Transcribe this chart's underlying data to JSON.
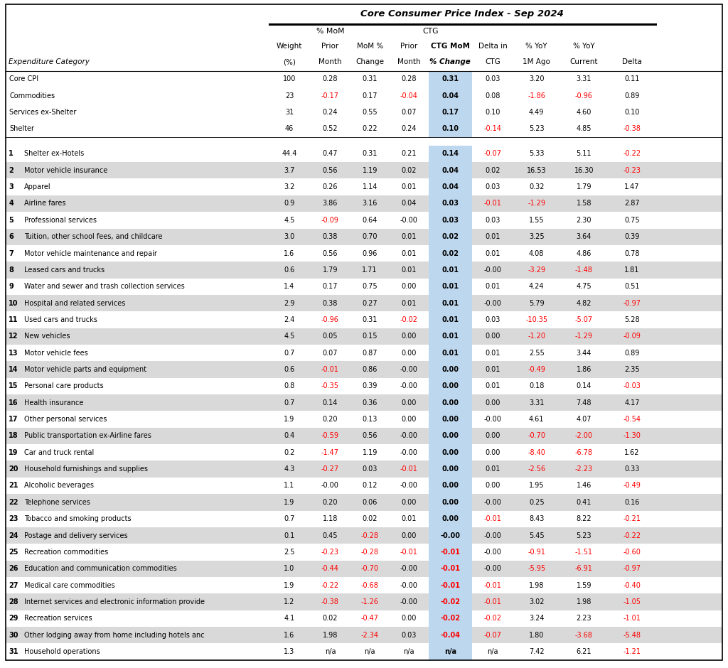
{
  "title": "Core Consumer Price Index - Sep 2024",
  "summary_rows": [
    [
      "Core CPI",
      "100",
      "0.28",
      "0.31",
      "0.28",
      "0.31",
      "0.03",
      "3.20",
      "3.31",
      "0.11"
    ],
    [
      "Commodities",
      "23",
      "-0.17",
      "0.17",
      "-0.04",
      "0.04",
      "0.08",
      "-1.86",
      "-0.96",
      "0.89"
    ],
    [
      "Services ex-Shelter",
      "31",
      "0.24",
      "0.55",
      "0.07",
      "0.17",
      "0.10",
      "4.49",
      "4.60",
      "0.10"
    ],
    [
      "Shelter",
      "46",
      "0.52",
      "0.22",
      "0.24",
      "0.10",
      "-0.14",
      "5.23",
      "4.85",
      "-0.38"
    ]
  ],
  "detail_rows": [
    [
      "1",
      "Shelter ex-Hotels",
      "44.4",
      "0.47",
      "0.31",
      "0.21",
      "0.14",
      "-0.07",
      "5.33",
      "5.11",
      "-0.22"
    ],
    [
      "2",
      "Motor vehicle insurance",
      "3.7",
      "0.56",
      "1.19",
      "0.02",
      "0.04",
      "0.02",
      "16.53",
      "16.30",
      "-0.23"
    ],
    [
      "3",
      "Apparel",
      "3.2",
      "0.26",
      "1.14",
      "0.01",
      "0.04",
      "0.03",
      "0.32",
      "1.79",
      "1.47"
    ],
    [
      "4",
      "Airline fares",
      "0.9",
      "3.86",
      "3.16",
      "0.04",
      "0.03",
      "-0.01",
      "-1.29",
      "1.58",
      "2.87"
    ],
    [
      "5",
      "Professional services",
      "4.5",
      "-0.09",
      "0.64",
      "-0.00",
      "0.03",
      "0.03",
      "1.55",
      "2.30",
      "0.75"
    ],
    [
      "6",
      "Tuition, other school fees, and childcare",
      "3.0",
      "0.38",
      "0.70",
      "0.01",
      "0.02",
      "0.01",
      "3.25",
      "3.64",
      "0.39"
    ],
    [
      "7",
      "Motor vehicle maintenance and repair",
      "1.6",
      "0.56",
      "0.96",
      "0.01",
      "0.02",
      "0.01",
      "4.08",
      "4.86",
      "0.78"
    ],
    [
      "8",
      "Leased cars and trucks",
      "0.6",
      "1.79",
      "1.71",
      "0.01",
      "0.01",
      "-0.00",
      "-3.29",
      "-1.48",
      "1.81"
    ],
    [
      "9",
      "Water and sewer and trash collection services",
      "1.4",
      "0.17",
      "0.75",
      "0.00",
      "0.01",
      "0.01",
      "4.24",
      "4.75",
      "0.51"
    ],
    [
      "10",
      "Hospital and related services",
      "2.9",
      "0.38",
      "0.27",
      "0.01",
      "0.01",
      "-0.00",
      "5.79",
      "4.82",
      "-0.97"
    ],
    [
      "11",
      "Used cars and trucks",
      "2.4",
      "-0.96",
      "0.31",
      "-0.02",
      "0.01",
      "0.03",
      "-10.35",
      "-5.07",
      "5.28"
    ],
    [
      "12",
      "New vehicles",
      "4.5",
      "0.05",
      "0.15",
      "0.00",
      "0.01",
      "0.00",
      "-1.20",
      "-1.29",
      "-0.09"
    ],
    [
      "13",
      "Motor vehicle fees",
      "0.7",
      "0.07",
      "0.87",
      "0.00",
      "0.01",
      "0.01",
      "2.55",
      "3.44",
      "0.89"
    ],
    [
      "14",
      "Motor vehicle parts and equipment",
      "0.6",
      "-0.01",
      "0.86",
      "-0.00",
      "0.00",
      "0.01",
      "-0.49",
      "1.86",
      "2.35"
    ],
    [
      "15",
      "Personal care products",
      "0.8",
      "-0.35",
      "0.39",
      "-0.00",
      "0.00",
      "0.01",
      "0.18",
      "0.14",
      "-0.03"
    ],
    [
      "16",
      "Health insurance",
      "0.7",
      "0.14",
      "0.36",
      "0.00",
      "0.00",
      "0.00",
      "3.31",
      "7.48",
      "4.17"
    ],
    [
      "17",
      "Other personal services",
      "1.9",
      "0.20",
      "0.13",
      "0.00",
      "0.00",
      "-0.00",
      "4.61",
      "4.07",
      "-0.54"
    ],
    [
      "18",
      "Public transportation ex-Airline fares",
      "0.4",
      "-0.59",
      "0.56",
      "-0.00",
      "0.00",
      "0.00",
      "-0.70",
      "-2.00",
      "-1.30"
    ],
    [
      "19",
      "Car and truck rental",
      "0.2",
      "-1.47",
      "1.19",
      "-0.00",
      "0.00",
      "0.00",
      "-8.40",
      "-6.78",
      "1.62"
    ],
    [
      "20",
      "Household furnishings and supplies",
      "4.3",
      "-0.27",
      "0.03",
      "-0.01",
      "0.00",
      "0.01",
      "-2.56",
      "-2.23",
      "0.33"
    ],
    [
      "21",
      "Alcoholic beverages",
      "1.1",
      "-0.00",
      "0.12",
      "-0.00",
      "0.00",
      "0.00",
      "1.95",
      "1.46",
      "-0.49"
    ],
    [
      "22",
      "Telephone services",
      "1.9",
      "0.20",
      "0.06",
      "0.00",
      "0.00",
      "-0.00",
      "0.25",
      "0.41",
      "0.16"
    ],
    [
      "23",
      "Tobacco and smoking products",
      "0.7",
      "1.18",
      "0.02",
      "0.01",
      "0.00",
      "-0.01",
      "8.43",
      "8.22",
      "-0.21"
    ],
    [
      "24",
      "Postage and delivery services",
      "0.1",
      "0.45",
      "-0.28",
      "0.00",
      "-0.00",
      "-0.00",
      "5.45",
      "5.23",
      "-0.22"
    ],
    [
      "25",
      "Recreation commodities",
      "2.5",
      "-0.23",
      "-0.28",
      "-0.01",
      "-0.01",
      "-0.00",
      "-0.91",
      "-1.51",
      "-0.60"
    ],
    [
      "26",
      "Education and communication commodities",
      "1.0",
      "-0.44",
      "-0.70",
      "-0.00",
      "-0.01",
      "-0.00",
      "-5.95",
      "-6.91",
      "-0.97"
    ],
    [
      "27",
      "Medical care commodities",
      "1.9",
      "-0.22",
      "-0.68",
      "-0.00",
      "-0.01",
      "-0.01",
      "1.98",
      "1.59",
      "-0.40"
    ],
    [
      "28",
      "Internet services and electronic information provide",
      "1.2",
      "-0.38",
      "-1.26",
      "-0.00",
      "-0.02",
      "-0.01",
      "3.02",
      "1.98",
      "-1.05"
    ],
    [
      "29",
      "Recreation services",
      "4.1",
      "0.02",
      "-0.47",
      "0.00",
      "-0.02",
      "-0.02",
      "3.24",
      "2.23",
      "-1.01"
    ],
    [
      "30",
      "Other lodging away from home including hotels anc",
      "1.6",
      "1.98",
      "-2.34",
      "0.03",
      "-0.04",
      "-0.07",
      "1.80",
      "-3.68",
      "-5.48"
    ],
    [
      "31",
      "Household operations",
      "1.3",
      "n/a",
      "n/a",
      "n/a",
      "n/a",
      "n/a",
      "7.42",
      "6.21",
      "-1.21"
    ]
  ],
  "red_color": "#FF0000",
  "black_color": "#000000",
  "bg_gray": "#D9D9D9",
  "bg_white": "#FFFFFF",
  "bg_blue": "#BDD7EE",
  "border_color": "#000000",
  "fig_width": 10.24,
  "fig_height": 9.4,
  "dpi": 100
}
